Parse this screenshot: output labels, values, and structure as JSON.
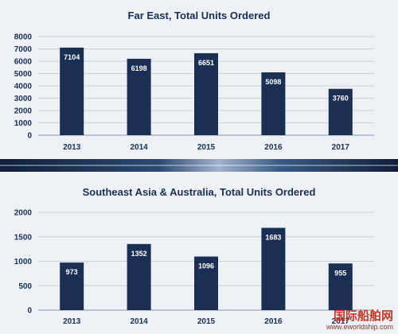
{
  "chart_data": [
    {
      "type": "bar",
      "title": "Far East, Total Units Ordered",
      "categories": [
        "2013",
        "2014",
        "2015",
        "2016",
        "2017"
      ],
      "values": [
        7104,
        6198,
        6651,
        5098,
        3760
      ],
      "yticks": [
        "0",
        "1000",
        "2000",
        "3000",
        "4000",
        "5000",
        "6000",
        "7000",
        "8000"
      ],
      "ylim": [
        0,
        8000
      ],
      "grid": true,
      "bar_color": "#1b2f55"
    },
    {
      "type": "bar",
      "title": "Southeast Asia & Australia, Total Units Ordered",
      "categories": [
        "2013",
        "2014",
        "2015",
        "2016",
        "2017"
      ],
      "values": [
        973,
        1352,
        1096,
        1683,
        955
      ],
      "yticks": [
        "0",
        "500",
        "1000",
        "1500",
        "2000"
      ],
      "ylim": [
        0,
        2000
      ],
      "grid": true,
      "bar_color": "#1b2f55"
    }
  ],
  "watermark": {
    "main": "国际船舶网",
    "url": "www.eworldship.com"
  }
}
